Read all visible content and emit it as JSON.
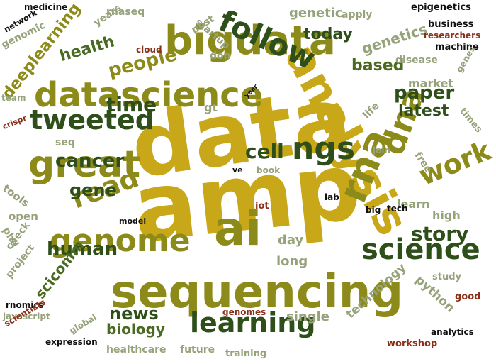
{
  "palette": {
    "gold": "#c8a818",
    "olive": "#8c8a18",
    "dark_green": "#2f4f1a",
    "green": "#4a6a22",
    "sage": "#96a27a",
    "brown": "#8a2f1a",
    "black": "#111111"
  },
  "words": [
    {
      "text": "data",
      "color": "gold",
      "weight": 100
    },
    {
      "text": "amp",
      "color": "gold",
      "weight": 100
    },
    {
      "text": "analysis",
      "color": "gold",
      "weight": 62
    },
    {
      "text": "sequencing",
      "color": "olive",
      "weight": 58
    },
    {
      "text": "datascience",
      "color": "olive",
      "weight": 52
    },
    {
      "text": "bigdata",
      "color": "olive",
      "weight": 48
    },
    {
      "text": "great",
      "color": "olive",
      "weight": 46
    },
    {
      "text": "ai",
      "color": "olive",
      "weight": 52
    },
    {
      "text": "rna",
      "color": "olive",
      "weight": 44
    },
    {
      "text": "genome",
      "color": "olive",
      "weight": 38
    },
    {
      "text": "dna",
      "color": "olive",
      "weight": 40
    },
    {
      "text": "follow",
      "color": "dark_green",
      "weight": 40
    },
    {
      "text": "tweeted",
      "color": "dark_green",
      "weight": 38
    },
    {
      "text": "ngs",
      "color": "dark_green",
      "weight": 38
    },
    {
      "text": "learning",
      "color": "dark_green",
      "weight": 36
    },
    {
      "text": "science",
      "color": "dark_green",
      "weight": 34
    },
    {
      "text": "read",
      "color": "olive",
      "weight": 32
    },
    {
      "text": "work",
      "color": "olive",
      "weight": 32
    },
    {
      "text": "story",
      "color": "dark_green",
      "weight": 26
    },
    {
      "text": "people",
      "color": "olive",
      "weight": 24
    },
    {
      "text": "time",
      "color": "dark_green",
      "weight": 24
    },
    {
      "text": "cancer",
      "color": "dark_green",
      "weight": 24
    },
    {
      "text": "cell",
      "color": "dark_green",
      "weight": 24
    },
    {
      "text": "human",
      "color": "dark_green",
      "weight": 22
    },
    {
      "text": "gene",
      "color": "dark_green",
      "weight": 22
    },
    {
      "text": "paper",
      "color": "dark_green",
      "weight": 22
    },
    {
      "text": "news",
      "color": "dark_green",
      "weight": 22
    },
    {
      "text": "health",
      "color": "green",
      "weight": 20
    },
    {
      "text": "latest",
      "color": "dark_green",
      "weight": 20
    },
    {
      "text": "based",
      "color": "green",
      "weight": 20
    },
    {
      "text": "biology",
      "color": "green",
      "weight": 18
    },
    {
      "text": "scicomm",
      "color": "green",
      "weight": 18
    },
    {
      "text": "deeplearning",
      "color": "olive",
      "weight": 18
    },
    {
      "text": "today",
      "color": "dark_green",
      "weight": 18
    },
    {
      "text": "genetics",
      "color": "sage",
      "weight": 18
    },
    {
      "text": "genetic",
      "color": "sage",
      "weight": 16
    },
    {
      "text": "day",
      "color": "sage",
      "weight": 16
    },
    {
      "text": "long",
      "color": "sage",
      "weight": 16
    },
    {
      "text": "single",
      "color": "sage",
      "weight": 16
    },
    {
      "text": "technology",
      "color": "sage",
      "weight": 15
    },
    {
      "text": "python",
      "color": "sage",
      "weight": 15
    },
    {
      "text": "high",
      "color": "sage",
      "weight": 15
    },
    {
      "text": "learn",
      "color": "sage",
      "weight": 14
    },
    {
      "text": "market",
      "color": "sage",
      "weight": 14
    },
    {
      "text": "gt",
      "color": "sage",
      "weight": 14
    },
    {
      "text": "genomic",
      "color": "sage",
      "weight": 13
    },
    {
      "text": "years",
      "color": "sage",
      "weight": 12
    },
    {
      "text": "rnaseq",
      "color": "sage",
      "weight": 12
    },
    {
      "text": "apply",
      "color": "sage",
      "weight": 12
    },
    {
      "text": "disease",
      "color": "sage",
      "weight": 12
    },
    {
      "text": "machine",
      "color": "black",
      "weight": 11
    },
    {
      "text": "business",
      "color": "black",
      "weight": 11
    },
    {
      "text": "epigenetics",
      "color": "black",
      "weight": 11
    },
    {
      "text": "medicine",
      "color": "black",
      "weight": 10
    },
    {
      "text": "network",
      "color": "black",
      "weight": 10
    },
    {
      "text": "startup",
      "color": "sage",
      "weight": 12
    },
    {
      "text": "post",
      "color": "sage",
      "weight": 12
    },
    {
      "text": "don",
      "color": "sage",
      "weight": 12
    },
    {
      "text": "researchers",
      "color": "brown",
      "weight": 11
    },
    {
      "text": "cloud",
      "color": "brown",
      "weight": 11
    },
    {
      "text": "genes",
      "color": "sage",
      "weight": 10
    },
    {
      "text": "team",
      "color": "sage",
      "weight": 10
    },
    {
      "text": "year",
      "color": "black",
      "weight": 8
    },
    {
      "text": "crispr",
      "color": "brown",
      "weight": 10
    },
    {
      "text": "seq",
      "color": "sage",
      "weight": 12
    },
    {
      "text": "times",
      "color": "sage",
      "weight": 12
    },
    {
      "text": "life",
      "color": "sage",
      "weight": 12
    },
    {
      "text": "free",
      "color": "sage",
      "weight": 12
    },
    {
      "text": "join",
      "color": "sage",
      "weight": 11
    },
    {
      "text": "ve",
      "color": "black",
      "weight": 10
    },
    {
      "text": "book",
      "color": "sage",
      "weight": 11
    },
    {
      "text": "tools",
      "color": "sage",
      "weight": 13
    },
    {
      "text": "open",
      "color": "sage",
      "weight": 13
    },
    {
      "text": "phd",
      "color": "sage",
      "weight": 12
    },
    {
      "text": "lab",
      "color": "black",
      "weight": 10
    },
    {
      "text": "iot",
      "color": "brown",
      "weight": 11
    },
    {
      "text": "big",
      "color": "black",
      "weight": 10
    },
    {
      "text": "tech",
      "color": "black",
      "weight": 10
    },
    {
      "text": "model",
      "color": "black",
      "weight": 9
    },
    {
      "text": "check",
      "color": "sage",
      "weight": 12
    },
    {
      "text": "project",
      "color": "sage",
      "weight": 12
    },
    {
      "text": "study",
      "color": "sage",
      "weight": 12
    },
    {
      "text": "good",
      "color": "brown",
      "weight": 11
    },
    {
      "text": "rnomics",
      "color": "black",
      "weight": 10
    },
    {
      "text": "javascript",
      "color": "sage",
      "weight": 11
    },
    {
      "text": "scientists",
      "color": "brown",
      "weight": 10
    },
    {
      "text": "genomes",
      "color": "brown",
      "weight": 11
    },
    {
      "text": "global",
      "color": "sage",
      "weight": 11
    },
    {
      "text": "expression",
      "color": "black",
      "weight": 10
    },
    {
      "text": "healthcare",
      "color": "sage",
      "weight": 12
    },
    {
      "text": "future",
      "color": "sage",
      "weight": 12
    },
    {
      "text": "training",
      "color": "sage",
      "weight": 11
    },
    {
      "text": "workshop",
      "color": "brown",
      "weight": 11
    },
    {
      "text": "analytics",
      "color": "black",
      "weight": 10
    }
  ]
}
